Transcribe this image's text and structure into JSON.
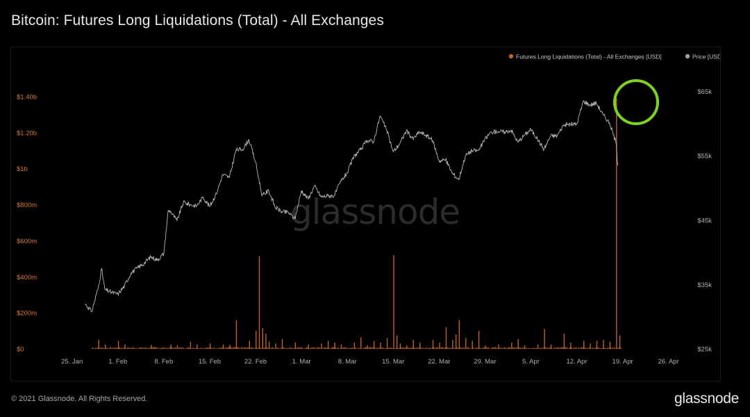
{
  "title": "Bitcoin: Futures Long Liquidations (Total) - All Exchanges",
  "footer": {
    "copyright": "© 2021 Glassnode. All Rights Reserved.",
    "logo": "glassnode"
  },
  "watermark": "glassnode",
  "colors": {
    "liquidations": "#c0602a",
    "price": "#b8b8b8",
    "highlight_circle": "#7ed321",
    "left_tick": "#d9773a",
    "right_tick": "#b0b0b0"
  },
  "chart_data": {
    "type": "bar+line",
    "title": "Bitcoin: Futures Long Liquidations (Total) - All Exchanges",
    "legend": [
      {
        "label": "Futures Long Liquidations (Total) - All Exchanges [USD]",
        "color": "#c0602a"
      },
      {
        "label": "Price [USD]",
        "color": "#a0a0a0"
      }
    ],
    "legend_position": "top-right",
    "x_axis": {
      "type": "date",
      "range": [
        "2021-01-21",
        "2021-04-29"
      ],
      "ticks": [
        {
          "date": "2021-01-25",
          "label": "25. Jan"
        },
        {
          "date": "2021-02-01",
          "label": "1. Feb"
        },
        {
          "date": "2021-02-08",
          "label": "8. Feb"
        },
        {
          "date": "2021-02-15",
          "label": "15. Feb"
        },
        {
          "date": "2021-02-22",
          "label": "22. Feb"
        },
        {
          "date": "2021-03-01",
          "label": "1. Mar"
        },
        {
          "date": "2021-03-08",
          "label": "8. Mar"
        },
        {
          "date": "2021-03-15",
          "label": "15. Mar"
        },
        {
          "date": "2021-03-22",
          "label": "22. Mar"
        },
        {
          "date": "2021-03-29",
          "label": "29. Mar"
        },
        {
          "date": "2021-04-05",
          "label": "5. Apr"
        },
        {
          "date": "2021-04-12",
          "label": "12. Apr"
        },
        {
          "date": "2021-04-19",
          "label": "19. Apr"
        },
        {
          "date": "2021-04-26",
          "label": "26. Apr"
        }
      ]
    },
    "y_left": {
      "unit": "USD",
      "range": [
        0,
        1500000000
      ],
      "ticks": [
        {
          "value": 0,
          "label": "$0"
        },
        {
          "value": 200000000,
          "label": "$200m"
        },
        {
          "value": 400000000,
          "label": "$400m"
        },
        {
          "value": 600000000,
          "label": "$600m"
        },
        {
          "value": 800000000,
          "label": "$800m"
        },
        {
          "value": 1000000000,
          "label": "$1b"
        },
        {
          "value": 1200000000,
          "label": "$1.20b"
        },
        {
          "value": 1400000000,
          "label": "$1.40b"
        }
      ]
    },
    "y_right": {
      "unit": "USD",
      "range": [
        25000,
        67000
      ],
      "ticks": [
        {
          "value": 25000,
          "label": "$25k"
        },
        {
          "value": 35000,
          "label": "$35k"
        },
        {
          "value": 45000,
          "label": "$45k"
        },
        {
          "value": 55000,
          "label": "$55k"
        },
        {
          "value": 65000,
          "label": "$65k"
        }
      ]
    },
    "grid": false,
    "liquidation_spikes": [
      {
        "date": "2021-01-29",
        "value": 50000000
      },
      {
        "date": "2021-01-30",
        "value": 25000000
      },
      {
        "date": "2021-02-01",
        "value": 45000000
      },
      {
        "date": "2021-02-02",
        "value": 25000000
      },
      {
        "date": "2021-02-06",
        "value": 22000000
      },
      {
        "date": "2021-02-09",
        "value": 25000000
      },
      {
        "date": "2021-02-10",
        "value": 20000000
      },
      {
        "date": "2021-02-12",
        "value": 40000000
      },
      {
        "date": "2021-02-13",
        "value": 25000000
      },
      {
        "date": "2021-02-15",
        "value": 30000000
      },
      {
        "date": "2021-02-17",
        "value": 25000000
      },
      {
        "date": "2021-02-18",
        "value": 22000000
      },
      {
        "date": "2021-02-19",
        "value": 160000000
      },
      {
        "date": "2021-02-21",
        "value": 45000000
      },
      {
        "date": "2021-02-22",
        "value": 100000000
      },
      {
        "date": "2021-02-22T12:00",
        "value": 515000000
      },
      {
        "date": "2021-02-23",
        "value": 115000000
      },
      {
        "date": "2021-02-23T12:00",
        "value": 85000000
      },
      {
        "date": "2021-02-24",
        "value": 40000000
      },
      {
        "date": "2021-02-25",
        "value": 30000000
      },
      {
        "date": "2021-02-26",
        "value": 55000000
      },
      {
        "date": "2021-02-28",
        "value": 35000000
      },
      {
        "date": "2021-03-02",
        "value": 25000000
      },
      {
        "date": "2021-03-04",
        "value": 30000000
      },
      {
        "date": "2021-03-05",
        "value": 45000000
      },
      {
        "date": "2021-03-06",
        "value": 35000000
      },
      {
        "date": "2021-03-07",
        "value": 25000000
      },
      {
        "date": "2021-03-09",
        "value": 35000000
      },
      {
        "date": "2021-03-10",
        "value": 65000000
      },
      {
        "date": "2021-03-11",
        "value": 20000000
      },
      {
        "date": "2021-03-12",
        "value": 45000000
      },
      {
        "date": "2021-03-13",
        "value": 35000000
      },
      {
        "date": "2021-03-14",
        "value": 60000000
      },
      {
        "date": "2021-03-15",
        "value": 520000000
      },
      {
        "date": "2021-03-15T12:00",
        "value": 75000000
      },
      {
        "date": "2021-03-16",
        "value": 30000000
      },
      {
        "date": "2021-03-17",
        "value": 20000000
      },
      {
        "date": "2021-03-18",
        "value": 50000000
      },
      {
        "date": "2021-03-19",
        "value": 35000000
      },
      {
        "date": "2021-03-21",
        "value": 50000000
      },
      {
        "date": "2021-03-22",
        "value": 35000000
      },
      {
        "date": "2021-03-23",
        "value": 120000000
      },
      {
        "date": "2021-03-24",
        "value": 50000000
      },
      {
        "date": "2021-03-24T12:00",
        "value": 80000000
      },
      {
        "date": "2021-03-25",
        "value": 160000000
      },
      {
        "date": "2021-03-26",
        "value": 60000000
      },
      {
        "date": "2021-03-27",
        "value": 45000000
      },
      {
        "date": "2021-03-28",
        "value": 100000000
      },
      {
        "date": "2021-03-29",
        "value": 20000000
      },
      {
        "date": "2021-03-31",
        "value": 25000000
      },
      {
        "date": "2021-04-02",
        "value": 35000000
      },
      {
        "date": "2021-04-03",
        "value": 55000000
      },
      {
        "date": "2021-04-04",
        "value": 20000000
      },
      {
        "date": "2021-04-06",
        "value": 25000000
      },
      {
        "date": "2021-04-07",
        "value": 110000000
      },
      {
        "date": "2021-04-08",
        "value": 25000000
      },
      {
        "date": "2021-04-10",
        "value": 85000000
      },
      {
        "date": "2021-04-11",
        "value": 35000000
      },
      {
        "date": "2021-04-13",
        "value": 45000000
      },
      {
        "date": "2021-04-14",
        "value": 30000000
      },
      {
        "date": "2021-04-15",
        "value": 45000000
      },
      {
        "date": "2021-04-16",
        "value": 50000000
      },
      {
        "date": "2021-04-17",
        "value": 40000000
      },
      {
        "date": "2021-04-18",
        "value": 1390000000
      },
      {
        "date": "2021-04-18T12:00",
        "value": 75000000
      }
    ],
    "price_series": [
      {
        "date": "2021-01-27",
        "value": 32000
      },
      {
        "date": "2021-01-28",
        "value": 30800
      },
      {
        "date": "2021-01-29",
        "value": 34500
      },
      {
        "date": "2021-01-29T12:00",
        "value": 37500
      },
      {
        "date": "2021-01-30",
        "value": 34200
      },
      {
        "date": "2021-01-31",
        "value": 33800
      },
      {
        "date": "2021-02-01",
        "value": 33500
      },
      {
        "date": "2021-02-02",
        "value": 34800
      },
      {
        "date": "2021-02-03",
        "value": 36800
      },
      {
        "date": "2021-02-04",
        "value": 37600
      },
      {
        "date": "2021-02-05",
        "value": 38300
      },
      {
        "date": "2021-02-06",
        "value": 39300
      },
      {
        "date": "2021-02-07",
        "value": 38800
      },
      {
        "date": "2021-02-08",
        "value": 39800
      },
      {
        "date": "2021-02-08T16:00",
        "value": 46500
      },
      {
        "date": "2021-02-09",
        "value": 46400
      },
      {
        "date": "2021-02-10",
        "value": 44900
      },
      {
        "date": "2021-02-11",
        "value": 47800
      },
      {
        "date": "2021-02-12",
        "value": 47400
      },
      {
        "date": "2021-02-13",
        "value": 47200
      },
      {
        "date": "2021-02-14",
        "value": 48600
      },
      {
        "date": "2021-02-15",
        "value": 47100
      },
      {
        "date": "2021-02-16",
        "value": 49100
      },
      {
        "date": "2021-02-17",
        "value": 52100
      },
      {
        "date": "2021-02-18",
        "value": 51600
      },
      {
        "date": "2021-02-19",
        "value": 55900
      },
      {
        "date": "2021-02-20",
        "value": 56000
      },
      {
        "date": "2021-02-21",
        "value": 57500
      },
      {
        "date": "2021-02-22",
        "value": 54000
      },
      {
        "date": "2021-02-23",
        "value": 48800
      },
      {
        "date": "2021-02-24",
        "value": 49600
      },
      {
        "date": "2021-02-25",
        "value": 47000
      },
      {
        "date": "2021-02-26",
        "value": 46300
      },
      {
        "date": "2021-02-27",
        "value": 46200
      },
      {
        "date": "2021-02-28",
        "value": 45200
      },
      {
        "date": "2021-03-01",
        "value": 49600
      },
      {
        "date": "2021-03-02",
        "value": 48300
      },
      {
        "date": "2021-03-03",
        "value": 50300
      },
      {
        "date": "2021-03-04",
        "value": 48600
      },
      {
        "date": "2021-03-05",
        "value": 48800
      },
      {
        "date": "2021-03-06",
        "value": 48800
      },
      {
        "date": "2021-03-07",
        "value": 51000
      },
      {
        "date": "2021-03-08",
        "value": 52400
      },
      {
        "date": "2021-03-09",
        "value": 54900
      },
      {
        "date": "2021-03-10",
        "value": 55900
      },
      {
        "date": "2021-03-11",
        "value": 57400
      },
      {
        "date": "2021-03-12",
        "value": 57200
      },
      {
        "date": "2021-03-13",
        "value": 61200
      },
      {
        "date": "2021-03-14",
        "value": 59000
      },
      {
        "date": "2021-03-15",
        "value": 55600
      },
      {
        "date": "2021-03-16",
        "value": 56900
      },
      {
        "date": "2021-03-17",
        "value": 58900
      },
      {
        "date": "2021-03-18",
        "value": 57600
      },
      {
        "date": "2021-03-19",
        "value": 58700
      },
      {
        "date": "2021-03-20",
        "value": 58200
      },
      {
        "date": "2021-03-21",
        "value": 57400
      },
      {
        "date": "2021-03-22",
        "value": 54200
      },
      {
        "date": "2021-03-23",
        "value": 54400
      },
      {
        "date": "2021-03-24",
        "value": 52300
      },
      {
        "date": "2021-03-25",
        "value": 51300
      },
      {
        "date": "2021-03-26",
        "value": 55000
      },
      {
        "date": "2021-03-27",
        "value": 55800
      },
      {
        "date": "2021-03-28",
        "value": 55800
      },
      {
        "date": "2021-03-29",
        "value": 57600
      },
      {
        "date": "2021-03-30",
        "value": 58700
      },
      {
        "date": "2021-03-31",
        "value": 58800
      },
      {
        "date": "2021-04-01",
        "value": 58700
      },
      {
        "date": "2021-04-02",
        "value": 59000
      },
      {
        "date": "2021-04-03",
        "value": 57100
      },
      {
        "date": "2021-04-04",
        "value": 58200
      },
      {
        "date": "2021-04-05",
        "value": 59100
      },
      {
        "date": "2021-04-06",
        "value": 57600
      },
      {
        "date": "2021-04-07",
        "value": 56000
      },
      {
        "date": "2021-04-08",
        "value": 58100
      },
      {
        "date": "2021-04-09",
        "value": 58100
      },
      {
        "date": "2021-04-10",
        "value": 59800
      },
      {
        "date": "2021-04-11",
        "value": 59900
      },
      {
        "date": "2021-04-12",
        "value": 59900
      },
      {
        "date": "2021-04-13",
        "value": 63500
      },
      {
        "date": "2021-04-14",
        "value": 62900
      },
      {
        "date": "2021-04-15",
        "value": 63200
      },
      {
        "date": "2021-04-16",
        "value": 61400
      },
      {
        "date": "2021-04-17",
        "value": 60100
      },
      {
        "date": "2021-04-18",
        "value": 57000
      },
      {
        "date": "2021-04-18T06:00",
        "value": 53500
      }
    ]
  }
}
